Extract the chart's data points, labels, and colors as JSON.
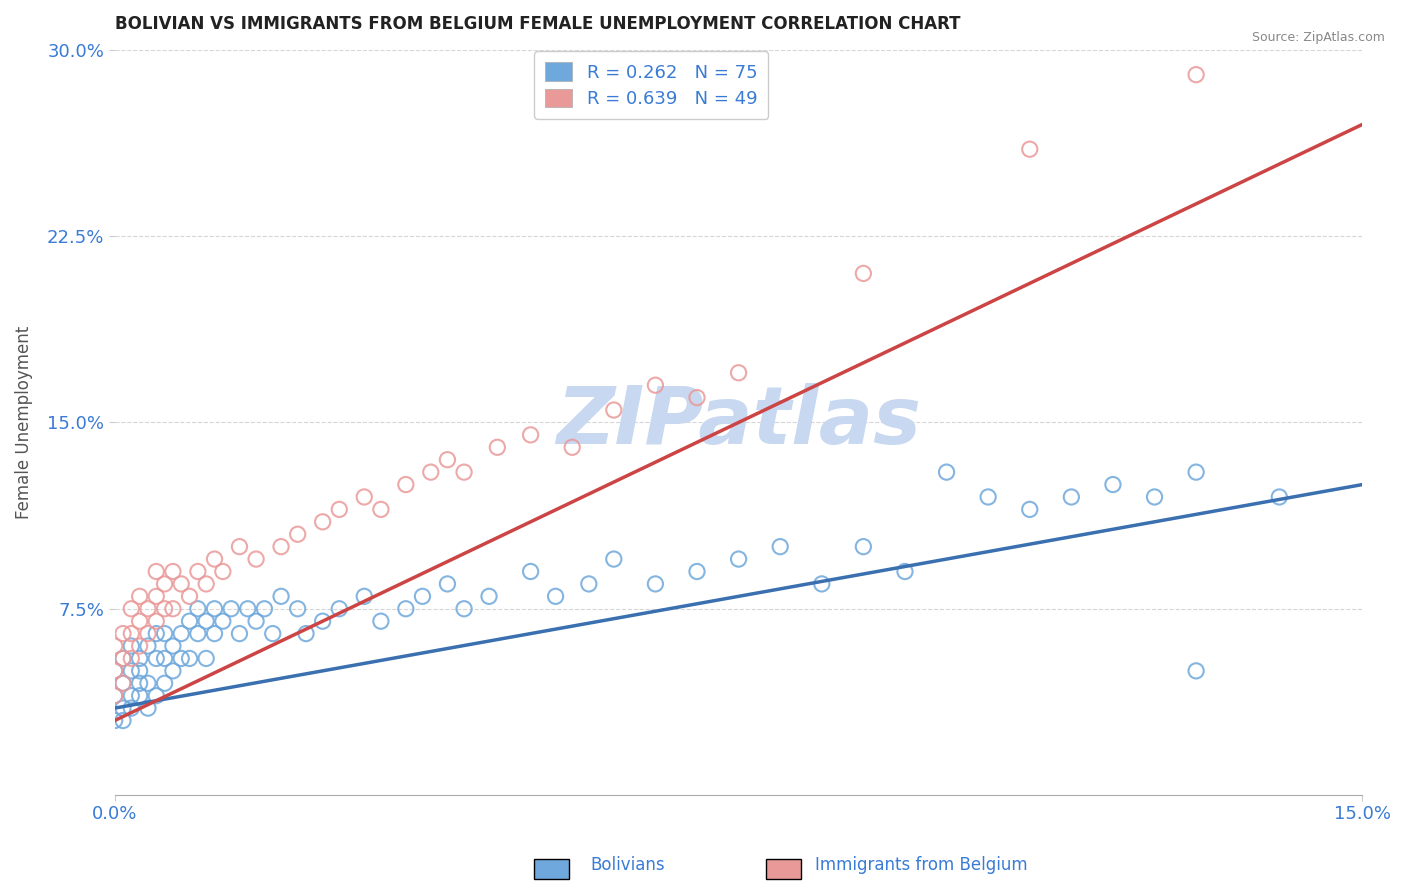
{
  "title": "BOLIVIAN VS IMMIGRANTS FROM BELGIUM FEMALE UNEMPLOYMENT CORRELATION CHART",
  "source": "Source: ZipAtlas.com",
  "ylabel": "Female Unemployment",
  "xlim": [
    0.0,
    0.15
  ],
  "ylim": [
    0.0,
    0.3
  ],
  "xticks": [
    0.0,
    0.15
  ],
  "xticklabels": [
    "0.0%",
    "15.0%"
  ],
  "yticks": [
    0.075,
    0.15,
    0.225,
    0.3
  ],
  "yticklabels": [
    "7.5%",
    "15.0%",
    "22.5%",
    "30.0%"
  ],
  "blue_color": "#6fa8dc",
  "pink_color": "#ea9999",
  "blue_line_color": "#3a6fb0",
  "pink_line_color": "#cc4444",
  "legend_r_blue": "R = 0.262",
  "legend_n_blue": "N = 75",
  "legend_r_pink": "R = 0.639",
  "legend_n_pink": "N = 49",
  "label_blue": "Bolivians",
  "label_pink": "Immigrants from Belgium",
  "watermark": "ZIPatlas",
  "watermark_color": "#c8d8f0",
  "title_color": "#222222",
  "tick_color": "#3a7bd5",
  "background_color": "#ffffff",
  "blue_line_x": [
    0.0,
    0.15
  ],
  "blue_line_y": [
    0.035,
    0.125
  ],
  "pink_line_x": [
    0.0,
    0.15
  ],
  "pink_line_y": [
    0.03,
    0.27
  ],
  "blue_x": [
    0.0,
    0.0,
    0.0,
    0.001,
    0.001,
    0.001,
    0.001,
    0.002,
    0.002,
    0.002,
    0.002,
    0.003,
    0.003,
    0.003,
    0.003,
    0.004,
    0.004,
    0.004,
    0.005,
    0.005,
    0.005,
    0.006,
    0.006,
    0.006,
    0.007,
    0.007,
    0.008,
    0.008,
    0.009,
    0.009,
    0.01,
    0.01,
    0.011,
    0.011,
    0.012,
    0.012,
    0.013,
    0.014,
    0.015,
    0.016,
    0.017,
    0.018,
    0.019,
    0.02,
    0.022,
    0.023,
    0.025,
    0.027,
    0.03,
    0.032,
    0.035,
    0.037,
    0.04,
    0.042,
    0.045,
    0.05,
    0.053,
    0.057,
    0.06,
    0.065,
    0.07,
    0.075,
    0.08,
    0.085,
    0.09,
    0.095,
    0.1,
    0.105,
    0.11,
    0.115,
    0.12,
    0.125,
    0.13,
    0.13,
    0.14
  ],
  "blue_y": [
    0.05,
    0.04,
    0.03,
    0.045,
    0.035,
    0.055,
    0.03,
    0.05,
    0.04,
    0.06,
    0.035,
    0.05,
    0.04,
    0.055,
    0.045,
    0.06,
    0.045,
    0.035,
    0.055,
    0.065,
    0.04,
    0.055,
    0.045,
    0.065,
    0.06,
    0.05,
    0.065,
    0.055,
    0.07,
    0.055,
    0.065,
    0.075,
    0.07,
    0.055,
    0.075,
    0.065,
    0.07,
    0.075,
    0.065,
    0.075,
    0.07,
    0.075,
    0.065,
    0.08,
    0.075,
    0.065,
    0.07,
    0.075,
    0.08,
    0.07,
    0.075,
    0.08,
    0.085,
    0.075,
    0.08,
    0.09,
    0.08,
    0.085,
    0.095,
    0.085,
    0.09,
    0.095,
    0.1,
    0.085,
    0.1,
    0.09,
    0.13,
    0.12,
    0.115,
    0.12,
    0.125,
    0.12,
    0.13,
    0.05,
    0.12
  ],
  "pink_x": [
    0.0,
    0.0,
    0.0,
    0.001,
    0.001,
    0.001,
    0.002,
    0.002,
    0.002,
    0.003,
    0.003,
    0.003,
    0.004,
    0.004,
    0.005,
    0.005,
    0.005,
    0.006,
    0.006,
    0.007,
    0.007,
    0.008,
    0.009,
    0.01,
    0.011,
    0.012,
    0.013,
    0.015,
    0.017,
    0.02,
    0.022,
    0.025,
    0.027,
    0.03,
    0.032,
    0.035,
    0.038,
    0.04,
    0.042,
    0.046,
    0.05,
    0.055,
    0.06,
    0.065,
    0.07,
    0.075,
    0.09,
    0.11,
    0.13
  ],
  "pink_y": [
    0.05,
    0.06,
    0.04,
    0.055,
    0.045,
    0.065,
    0.055,
    0.065,
    0.075,
    0.07,
    0.06,
    0.08,
    0.075,
    0.065,
    0.08,
    0.07,
    0.09,
    0.085,
    0.075,
    0.09,
    0.075,
    0.085,
    0.08,
    0.09,
    0.085,
    0.095,
    0.09,
    0.1,
    0.095,
    0.1,
    0.105,
    0.11,
    0.115,
    0.12,
    0.115,
    0.125,
    0.13,
    0.135,
    0.13,
    0.14,
    0.145,
    0.14,
    0.155,
    0.165,
    0.16,
    0.17,
    0.21,
    0.26,
    0.29
  ]
}
